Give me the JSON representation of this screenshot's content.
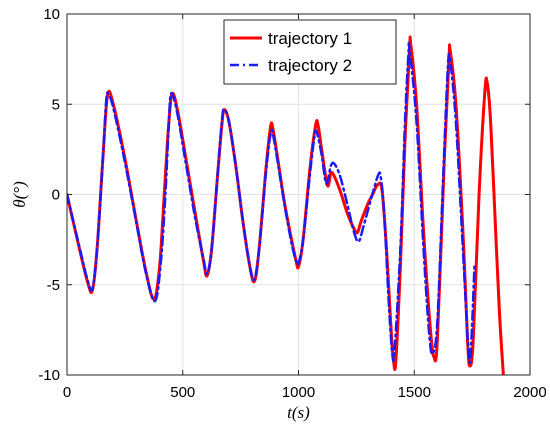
{
  "chart_data": {
    "type": "line",
    "xlabel": "t(s)",
    "ylabel": "θ(°)",
    "xlim": [
      0,
      2000
    ],
    "ylim": [
      -10,
      10
    ],
    "xticks": [
      0,
      500,
      1000,
      1500,
      2000
    ],
    "yticks": [
      -10,
      -5,
      0,
      5,
      10
    ],
    "xtick_labels": [
      "0",
      "500",
      "1000",
      "1500",
      "2000"
    ],
    "ytick_labels": [
      "-10",
      "-5",
      "0",
      "5",
      "10"
    ],
    "grid": true,
    "legend_position": "top-right",
    "series": [
      {
        "name": "trajectory 1",
        "color": "#ff0000",
        "style": "solid",
        "points": [
          [
            0,
            0
          ],
          [
            50,
            -2.8
          ],
          [
            90,
            -4.9
          ],
          [
            110,
            -5.3
          ],
          [
            130,
            -3
          ],
          [
            155,
            2
          ],
          [
            175,
            5.5
          ],
          [
            200,
            5
          ],
          [
            250,
            2
          ],
          [
            300,
            -1.5
          ],
          [
            340,
            -4.2
          ],
          [
            375,
            -5.8
          ],
          [
            400,
            -4
          ],
          [
            420,
            0
          ],
          [
            440,
            4
          ],
          [
            455,
            5.6
          ],
          [
            480,
            4.5
          ],
          [
            520,
            1.5
          ],
          [
            560,
            -1.5
          ],
          [
            590,
            -3.7
          ],
          [
            605,
            -4.5
          ],
          [
            625,
            -3
          ],
          [
            650,
            1
          ],
          [
            670,
            4
          ],
          [
            680,
            4.7
          ],
          [
            700,
            4
          ],
          [
            730,
            1.5
          ],
          [
            760,
            -1.5
          ],
          [
            790,
            -4
          ],
          [
            810,
            -4.8
          ],
          [
            830,
            -3
          ],
          [
            860,
            1.5
          ],
          [
            880,
            3.8
          ],
          [
            890,
            3.6
          ],
          [
            910,
            2
          ],
          [
            940,
            -0.5
          ],
          [
            970,
            -2.5
          ],
          [
            990,
            -3.7
          ],
          [
            1000,
            -4
          ],
          [
            1020,
            -2.5
          ],
          [
            1050,
            1.5
          ],
          [
            1075,
            3.9
          ],
          [
            1085,
            3.8
          ],
          [
            1100,
            2.5
          ],
          [
            1125,
            0.5
          ],
          [
            1140,
            1.2
          ],
          [
            1155,
            1
          ],
          [
            1180,
            0.2
          ],
          [
            1210,
            -1
          ],
          [
            1240,
            -1.9
          ],
          [
            1255,
            -2.1
          ],
          [
            1270,
            -1.5
          ],
          [
            1300,
            -0.5
          ],
          [
            1320,
            0
          ],
          [
            1340,
            0.5
          ],
          [
            1360,
            0.3
          ],
          [
            1380,
            -3
          ],
          [
            1400,
            -7.5
          ],
          [
            1410,
            -9.1
          ],
          [
            1420,
            -9.3
          ],
          [
            1440,
            -4
          ],
          [
            1460,
            3
          ],
          [
            1480,
            8.1
          ],
          [
            1485,
            8.3
          ],
          [
            1510,
            5
          ],
          [
            1540,
            -2
          ],
          [
            1570,
            -7.5
          ],
          [
            1585,
            -9
          ],
          [
            1600,
            -8
          ],
          [
            1630,
            2
          ],
          [
            1650,
            7.5
          ],
          [
            1655,
            8
          ],
          [
            1680,
            5
          ],
          [
            1710,
            -2
          ],
          [
            1730,
            -8
          ],
          [
            1740,
            -9.5
          ],
          [
            1755,
            -8
          ],
          [
            1780,
            0
          ],
          [
            1805,
            5.7
          ],
          [
            1815,
            6.2
          ],
          [
            1830,
            4
          ],
          [
            1855,
            -3
          ],
          [
            1870,
            -7
          ],
          [
            1885,
            -10
          ]
        ]
      },
      {
        "name": "trajectory 2",
        "color": "#1a1aff",
        "style": "dash-dot",
        "points": [
          [
            0,
            0
          ],
          [
            50,
            -2.7
          ],
          [
            90,
            -4.8
          ],
          [
            110,
            -5.2
          ],
          [
            130,
            -3
          ],
          [
            155,
            2
          ],
          [
            170,
            5.3
          ],
          [
            180,
            5.5
          ],
          [
            200,
            4.8
          ],
          [
            250,
            1.8
          ],
          [
            300,
            -1.6
          ],
          [
            340,
            -4.3
          ],
          [
            380,
            -5.9
          ],
          [
            405,
            -3.8
          ],
          [
            425,
            0
          ],
          [
            440,
            4
          ],
          [
            450,
            5.6
          ],
          [
            475,
            4.6
          ],
          [
            515,
            1.6
          ],
          [
            555,
            -1.4
          ],
          [
            590,
            -3.6
          ],
          [
            605,
            -4.4
          ],
          [
            625,
            -3
          ],
          [
            650,
            1
          ],
          [
            670,
            4.2
          ],
          [
            680,
            4.7
          ],
          [
            700,
            4
          ],
          [
            730,
            1.5
          ],
          [
            760,
            -1.5
          ],
          [
            790,
            -4
          ],
          [
            810,
            -4.7
          ],
          [
            830,
            -3
          ],
          [
            860,
            1.3
          ],
          [
            880,
            3.4
          ],
          [
            890,
            3.3
          ],
          [
            910,
            1.8
          ],
          [
            940,
            -0.6
          ],
          [
            970,
            -2.7
          ],
          [
            990,
            -3.7
          ],
          [
            1000,
            -3.8
          ],
          [
            1020,
            -2.5
          ],
          [
            1050,
            1.2
          ],
          [
            1070,
            3.3
          ],
          [
            1080,
            3.4
          ],
          [
            1100,
            2.2
          ],
          [
            1120,
            0.6
          ],
          [
            1140,
            1.6
          ],
          [
            1155,
            1.7
          ],
          [
            1180,
            1
          ],
          [
            1210,
            -0.5
          ],
          [
            1240,
            -2.1
          ],
          [
            1260,
            -2.6
          ],
          [
            1280,
            -1.8
          ],
          [
            1310,
            -0.4
          ],
          [
            1330,
            0.5
          ],
          [
            1345,
            1.1
          ],
          [
            1355,
            1
          ],
          [
            1370,
            -1
          ],
          [
            1390,
            -6
          ],
          [
            1405,
            -8.8
          ],
          [
            1415,
            -8.6
          ],
          [
            1440,
            -3
          ],
          [
            1460,
            4
          ],
          [
            1475,
            7.8
          ],
          [
            1480,
            8
          ],
          [
            1510,
            4
          ],
          [
            1540,
            -3
          ],
          [
            1565,
            -7.8
          ],
          [
            1580,
            -8.8
          ],
          [
            1600,
            -7
          ],
          [
            1625,
            1
          ],
          [
            1645,
            7
          ],
          [
            1655,
            7.4
          ],
          [
            1680,
            4
          ],
          [
            1710,
            -3
          ],
          [
            1735,
            -8.8
          ],
          [
            1745,
            -8.5
          ],
          [
            1760,
            -4
          ]
        ]
      }
    ]
  }
}
